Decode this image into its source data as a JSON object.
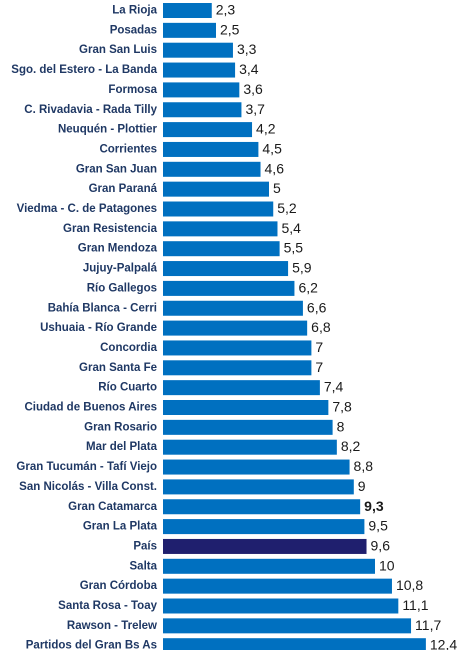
{
  "colors": {
    "bar": "#0070c0",
    "highlight_bar": "#1f1f6e",
    "category_text": "#1f3864",
    "value_text": "#1a1a1a"
  },
  "chart_data": {
    "type": "bar",
    "orientation": "horizontal",
    "title": "",
    "xlabel": "",
    "ylabel": "",
    "xlim": [
      0,
      12.4
    ],
    "grid": false,
    "legend": "none",
    "highlight_category": "País",
    "bold_value_category": "Gran Catamarca",
    "categories": [
      "La Rioja",
      "Posadas",
      "Gran San Luis",
      "Sgo. del Estero - La Banda",
      "Formosa",
      "C. Rivadavia - Rada Tilly",
      "Neuquén - Plottier",
      "Corrientes",
      "Gran San Juan",
      "Gran Paraná",
      "Viedma - C. de Patagones",
      "Gran Resistencia",
      "Gran Mendoza",
      "Jujuy-Palpalá",
      "Río Gallegos",
      "Bahía Blanca - Cerri",
      "Ushuaia - Río Grande",
      "Concordia",
      "Gran Santa Fe",
      "Río Cuarto",
      "Ciudad de Buenos Aires",
      "Gran Rosario",
      "Mar del Plata",
      "Gran Tucumán - Tafí Viejo",
      "San Nicolás - Villa Const.",
      "Gran Catamarca",
      "Gran La Plata",
      "País",
      "Salta",
      "Gran Córdoba",
      "Santa Rosa - Toay",
      "Rawson - Trelew",
      "Partidos del Gran Bs As"
    ],
    "values": [
      2.3,
      2.5,
      3.3,
      3.4,
      3.6,
      3.7,
      4.2,
      4.5,
      4.6,
      5,
      5.2,
      5.4,
      5.5,
      5.9,
      6.2,
      6.6,
      6.8,
      7,
      7,
      7.4,
      7.8,
      8,
      8.2,
      8.8,
      9,
      9.3,
      9.5,
      9.6,
      10,
      10.8,
      11.1,
      11.7,
      12.4
    ],
    "value_labels": [
      "2,3",
      "2,5",
      "3,3",
      "3,4",
      "3,6",
      "3,7",
      "4,2",
      "4,5",
      "4,6",
      "5",
      "5,2",
      "5,4",
      "5,5",
      "5,9",
      "6,2",
      "6,6",
      "6,8",
      "7",
      "7",
      "7,4",
      "7,8",
      "8",
      "8,2",
      "8,8",
      "9",
      "9,3",
      "9,5",
      "9,6",
      "10",
      "10,8",
      "11,1",
      "11,7",
      "12,4"
    ]
  }
}
